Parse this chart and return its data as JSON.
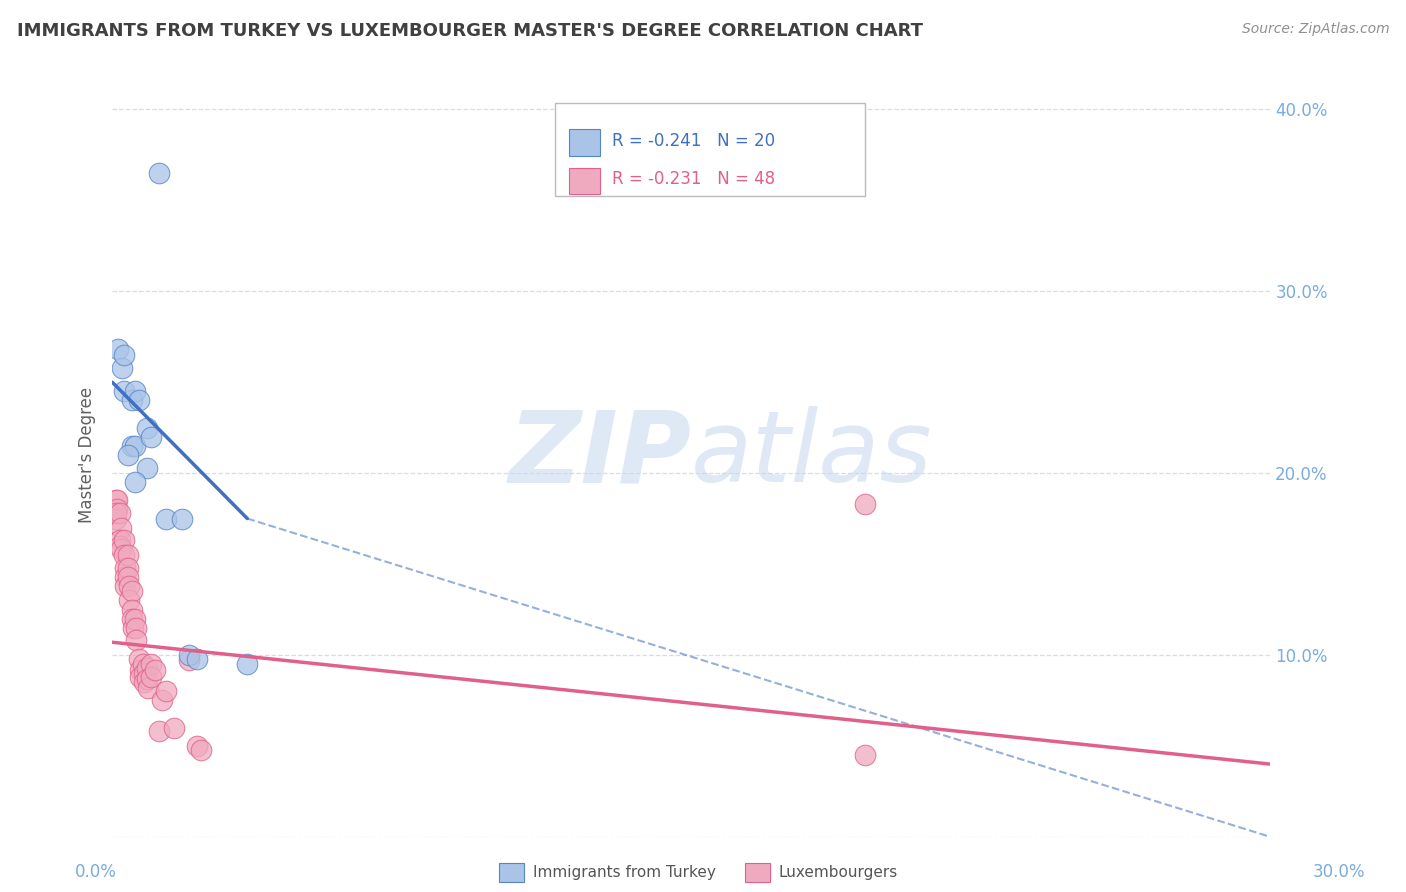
{
  "title": "IMMIGRANTS FROM TURKEY VS LUXEMBOURGER MASTER'S DEGREE CORRELATION CHART",
  "source": "Source: ZipAtlas.com",
  "ylabel": "Master's Degree",
  "watermark_zip": "ZIP",
  "watermark_atlas": "atlas",
  "legend": {
    "blue_label": "Immigrants from Turkey",
    "pink_label": "Luxembourgers",
    "blue_R": "R = -0.241",
    "blue_N": "N = 20",
    "pink_R": "R = -0.231",
    "pink_N": "N = 48"
  },
  "blue_scatter": [
    [
      0.15,
      26.8
    ],
    [
      0.25,
      25.8
    ],
    [
      0.3,
      24.5
    ],
    [
      0.5,
      24.0
    ],
    [
      0.6,
      24.5
    ],
    [
      0.3,
      26.5
    ],
    [
      0.7,
      24.0
    ],
    [
      0.5,
      21.5
    ],
    [
      0.6,
      21.5
    ],
    [
      0.4,
      21.0
    ],
    [
      0.9,
      22.5
    ],
    [
      0.9,
      20.3
    ],
    [
      0.6,
      19.5
    ],
    [
      1.0,
      22.0
    ],
    [
      1.4,
      17.5
    ],
    [
      1.8,
      17.5
    ],
    [
      2.0,
      10.0
    ],
    [
      2.2,
      9.8
    ],
    [
      3.5,
      9.5
    ],
    [
      1.2,
      36.5
    ]
  ],
  "pink_scatter": [
    [
      0.1,
      18.5
    ],
    [
      0.12,
      18.5
    ],
    [
      0.13,
      18.0
    ],
    [
      0.1,
      17.5
    ],
    [
      0.11,
      17.8
    ],
    [
      0.2,
      17.8
    ],
    [
      0.22,
      17.0
    ],
    [
      0.2,
      16.3
    ],
    [
      0.21,
      16.0
    ],
    [
      0.22,
      15.8
    ],
    [
      0.3,
      16.3
    ],
    [
      0.31,
      15.5
    ],
    [
      0.32,
      14.8
    ],
    [
      0.33,
      14.3
    ],
    [
      0.34,
      13.8
    ],
    [
      0.4,
      15.5
    ],
    [
      0.41,
      14.8
    ],
    [
      0.42,
      14.3
    ],
    [
      0.43,
      13.8
    ],
    [
      0.44,
      13.0
    ],
    [
      0.5,
      13.5
    ],
    [
      0.51,
      12.5
    ],
    [
      0.52,
      12.0
    ],
    [
      0.53,
      11.5
    ],
    [
      0.6,
      12.0
    ],
    [
      0.61,
      11.5
    ],
    [
      0.62,
      10.8
    ],
    [
      0.7,
      9.8
    ],
    [
      0.71,
      9.2
    ],
    [
      0.72,
      8.8
    ],
    [
      0.8,
      9.5
    ],
    [
      0.81,
      9.0
    ],
    [
      0.82,
      8.5
    ],
    [
      0.9,
      9.3
    ],
    [
      0.91,
      8.7
    ],
    [
      0.92,
      8.2
    ],
    [
      1.0,
      9.5
    ],
    [
      1.01,
      8.8
    ],
    [
      1.1,
      9.2
    ],
    [
      1.2,
      5.8
    ],
    [
      1.3,
      7.5
    ],
    [
      1.4,
      8.0
    ],
    [
      1.6,
      6.0
    ],
    [
      2.0,
      9.7
    ],
    [
      2.2,
      5.0
    ],
    [
      2.3,
      4.8
    ],
    [
      19.5,
      18.3
    ],
    [
      19.5,
      4.5
    ]
  ],
  "blue_line_solid": [
    [
      0.0,
      25.0
    ],
    [
      3.5,
      17.5
    ]
  ],
  "blue_line_dashed": [
    [
      3.5,
      17.5
    ],
    [
      30.0,
      0.0
    ]
  ],
  "pink_line": [
    [
      0.0,
      10.7
    ],
    [
      30.0,
      4.0
    ]
  ],
  "xlim": [
    0.0,
    30.0
  ],
  "ylim": [
    0.0,
    42.0
  ],
  "yticks": [
    0,
    10,
    20,
    30,
    40
  ],
  "ytick_labels_right": [
    "",
    "10.0%",
    "20.0%",
    "30.0%",
    "40.0%"
  ],
  "bg_color": "#ffffff",
  "blue_color": "#aac4e8",
  "pink_color": "#f0aabf",
  "blue_edge_color": "#5585c5",
  "pink_edge_color": "#e0608a",
  "blue_line_color": "#4070c0",
  "pink_line_color": "#e0608a",
  "grid_color": "#d5dded",
  "axis_color": "#7aace0",
  "title_color": "#404040",
  "source_color": "#909090",
  "ylabel_color": "#606060"
}
